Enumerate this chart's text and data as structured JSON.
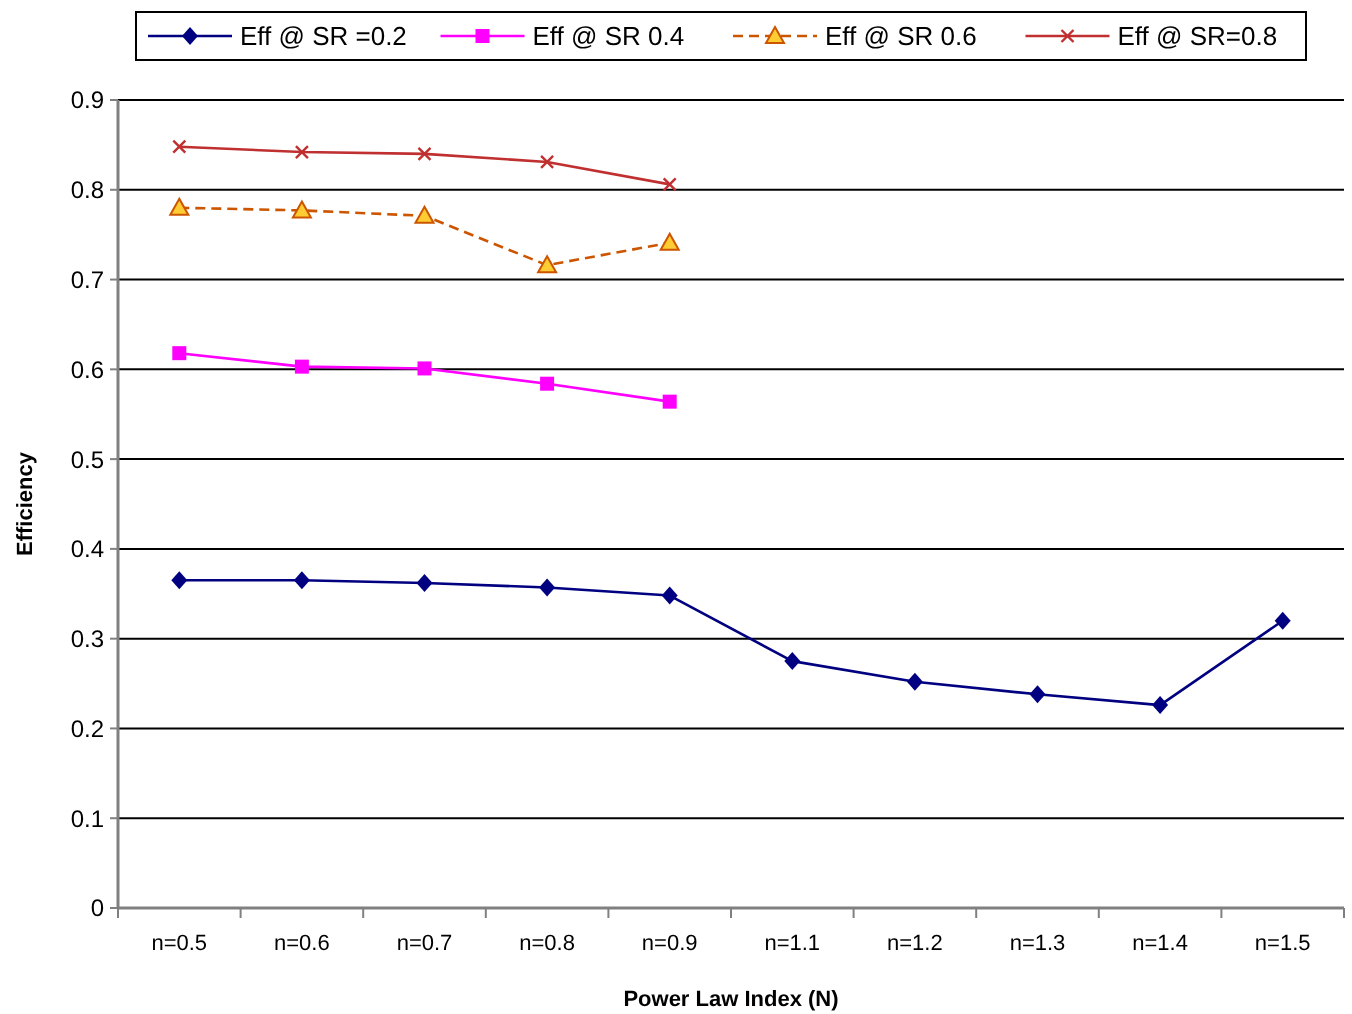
{
  "chart_data": {
    "type": "line",
    "xlabel": "Power Law Index (N)",
    "ylabel": "Efficiency",
    "categories": [
      "n=0.5",
      "n=0.6",
      "n=0.7",
      "n=0.8",
      "n=0.9",
      "n=1.1",
      "n=1.2",
      "n=1.3",
      "n=1.4",
      "n=1.5"
    ],
    "series": [
      {
        "name": "Eff @ SR =0.2",
        "color": "#000080",
        "marker": "diamond",
        "line_style": "solid",
        "values": [
          0.365,
          0.365,
          0.362,
          0.357,
          0.348,
          0.275,
          0.252,
          0.238,
          0.226,
          0.32
        ]
      },
      {
        "name": "Eff @ SR 0.4",
        "color": "#ff00ff",
        "marker": "square",
        "line_style": "solid",
        "values": [
          0.618,
          0.603,
          0.601,
          0.584,
          0.564,
          null,
          null,
          null,
          null,
          null
        ]
      },
      {
        "name": "Eff @ SR 0.6",
        "color": "#cc5500",
        "marker": "triangle",
        "line_style": "dashed",
        "values": [
          0.78,
          0.777,
          0.771,
          0.716,
          0.741,
          null,
          null,
          null,
          null,
          null
        ]
      },
      {
        "name": "Eff @ SR=0.8",
        "color": "#c03030",
        "marker": "cross",
        "line_style": "solid",
        "values": [
          0.848,
          0.842,
          0.84,
          0.831,
          0.806,
          null,
          null,
          null,
          null,
          null
        ]
      }
    ],
    "ylim": [
      0,
      0.9
    ],
    "yticks": [
      0,
      0.1,
      0.2,
      0.3,
      0.4,
      0.5,
      0.6,
      0.7,
      0.8,
      0.9
    ],
    "grid": "y",
    "legend": "top"
  }
}
